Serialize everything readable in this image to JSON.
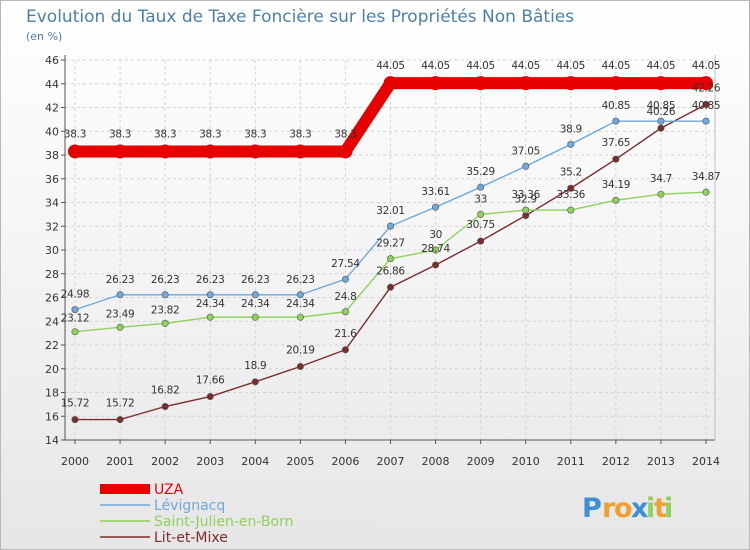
{
  "chart_data": {
    "type": "line",
    "title": "Evolution du Taux de Taxe Foncière sur les Propriétés Non Bâties",
    "subtitle": "(en %)",
    "xlabel": "",
    "ylabel": "",
    "ylim": [
      14,
      46
    ],
    "yticks": [
      "14",
      "16",
      "18",
      "20",
      "22",
      "24",
      "26",
      "28",
      "30",
      "32",
      "34",
      "36",
      "38",
      "40",
      "42",
      "44",
      "46"
    ],
    "grid": true,
    "legend_position": "bottom-left",
    "x": [
      "2000",
      "2001",
      "2002",
      "2003",
      "2004",
      "2005",
      "2006",
      "2007",
      "2008",
      "2009",
      "2010",
      "2011",
      "2012",
      "2013",
      "2014"
    ],
    "series": [
      {
        "name": "UZA",
        "color": "#e60000",
        "values": [
          38.3,
          38.3,
          38.3,
          38.3,
          38.3,
          38.3,
          38.3,
          44.05,
          44.05,
          44.05,
          44.05,
          44.05,
          44.05,
          44.05,
          44.05
        ],
        "labels": [
          "38.3",
          "38.3",
          "38.3",
          "38.3",
          "38.3",
          "38.3",
          "38.3",
          "44.05",
          "44.05",
          "44.05",
          "44.05",
          "44.05",
          "44.05",
          "44.05",
          "44.05"
        ]
      },
      {
        "name": "Lévignacq",
        "color": "#6fa8dc",
        "values": [
          24.98,
          26.23,
          26.23,
          26.23,
          26.23,
          26.23,
          27.54,
          32.01,
          33.61,
          35.29,
          37.05,
          38.9,
          40.85,
          40.85,
          40.85
        ],
        "labels": [
          "24.98",
          "26.23",
          "26.23",
          "26.23",
          "26.23",
          "26.23",
          "27.54",
          "32.01",
          "33.61",
          "35.29",
          "37.05",
          "38.9",
          "40.85",
          "40.85",
          "40.85"
        ]
      },
      {
        "name": "Saint-Julien-en-Born",
        "color": "#8fd15a",
        "values": [
          23.12,
          23.49,
          23.82,
          24.34,
          24.34,
          24.34,
          24.8,
          29.27,
          30,
          33,
          33.36,
          33.36,
          34.19,
          34.7,
          34.87
        ],
        "labels": [
          "23.12",
          "23.49",
          "23.82",
          "24.34",
          "24.34",
          "24.34",
          "24.8",
          "29.27",
          "30",
          "33",
          "33.36",
          "33.36",
          "34.19",
          "34.7",
          "34.87"
        ]
      },
      {
        "name": "Lit-et-Mixe",
        "color": "#7b2c2c",
        "values": [
          15.72,
          15.72,
          16.82,
          17.66,
          18.9,
          20.19,
          21.6,
          26.86,
          28.74,
          30.75,
          32.9,
          35.2,
          37.65,
          40.26,
          42.26
        ],
        "labels": [
          "15.72",
          "15.72",
          "16.82",
          "17.66",
          "18.9",
          "20.19",
          "21.6",
          "26.86",
          "28.74",
          "30.75",
          "32.9",
          "35.2",
          "37.65",
          "40.26",
          "42.26"
        ]
      }
    ]
  },
  "logo": {
    "letters": [
      "P",
      "r",
      "o",
      "x",
      "i",
      "t",
      "i"
    ],
    "colors": [
      "#3c8fd8",
      "#f0a030",
      "#f0a030",
      "#3c8fd8",
      "#8fd15a",
      "#f0a030",
      "#8fd15a"
    ]
  }
}
